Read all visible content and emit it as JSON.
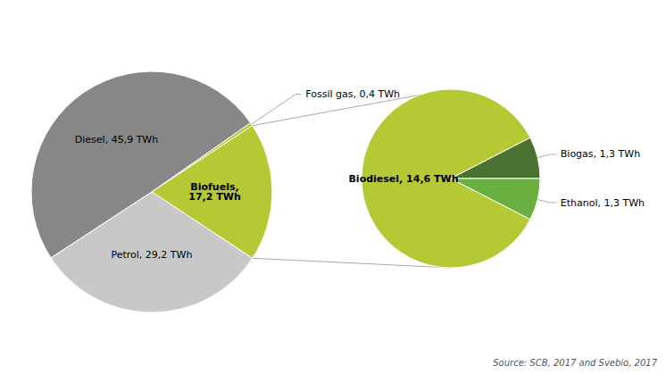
{
  "chart_data": [
    {
      "type": "pie",
      "categories": [
        "Diesel, 45,9 TWh",
        "Fossil gas, 0,4 TWh",
        "Biofuels,\n17,2 TWh",
        "Petrol, 29,2 TWh"
      ],
      "values": [
        45.9,
        0.4,
        17.2,
        29.2
      ],
      "colors": [
        "#878787",
        "#b5c934",
        "#b5c934",
        "#c8c8c8"
      ],
      "annotations": [
        "Source: SCB, 2017 and Svebio, 2017"
      ]
    },
    {
      "type": "pie",
      "categories": [
        "Biodiesel, 14,6 TWh",
        "Biogas, 1,3 TWh",
        "Ethanol, 1,3 TWh"
      ],
      "values": [
        14.6,
        1.3,
        1.3
      ],
      "colors": [
        "#b5c934",
        "#4a7230",
        "#6ab040"
      ]
    }
  ]
}
